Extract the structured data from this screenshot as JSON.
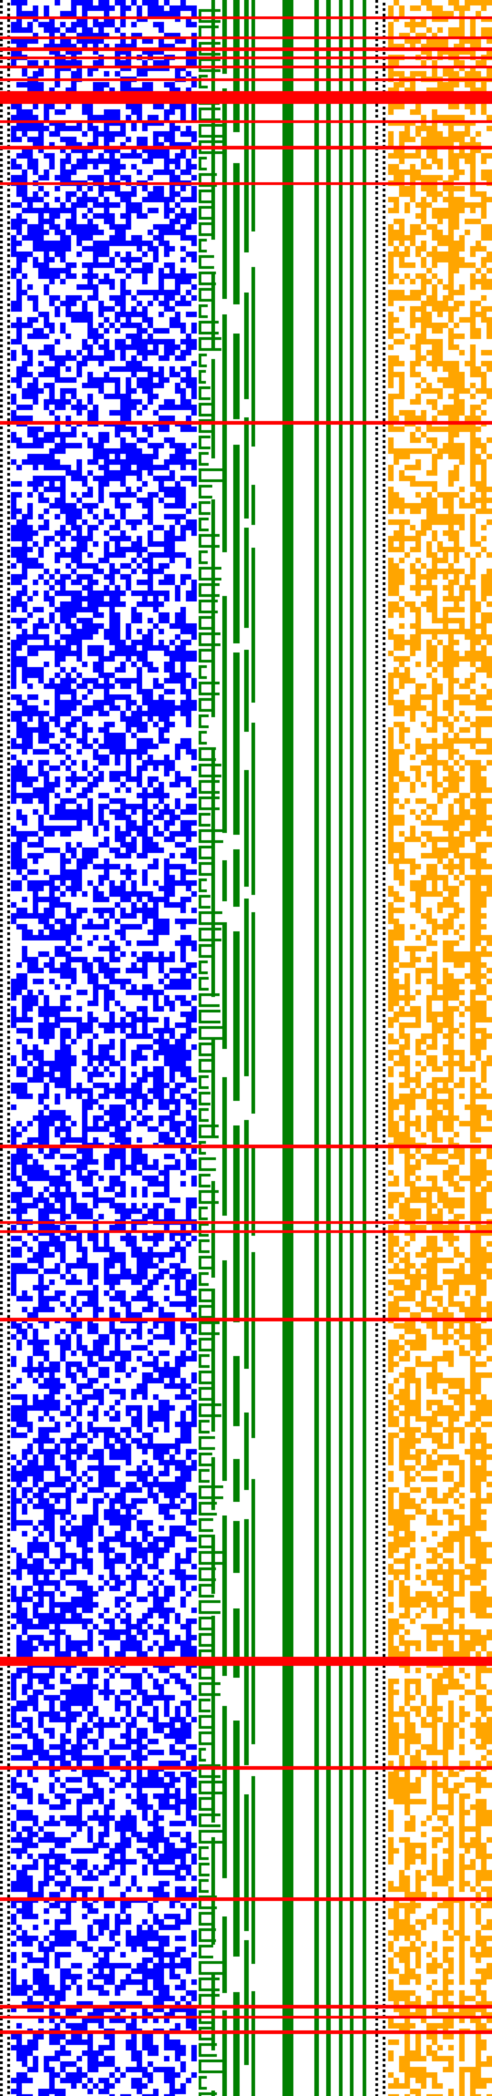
{
  "palette": {
    "background": "#ffffff",
    "left_block": "#0000ff",
    "tree_lines": "#008000",
    "right_block": "#ffa500",
    "markers": "#ff0000",
    "dotted_separator": "#000000"
  },
  "regions": [
    "left-block",
    "tree-lines",
    "right-block"
  ],
  "marker_count": 22
}
